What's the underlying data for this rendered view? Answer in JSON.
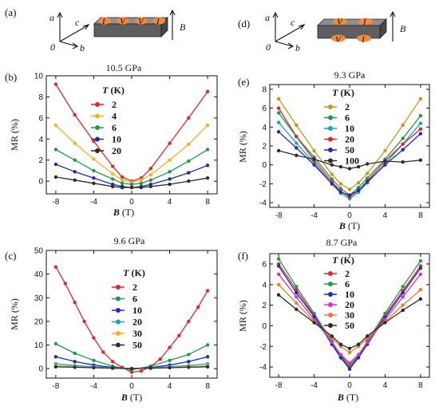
{
  "figure": {
    "schematics": [
      {
        "panel_label": "(a)",
        "axis_labels": {
          "a": "a",
          "b": "b",
          "c": "c",
          "origin": "0"
        },
        "field_label": "B",
        "contact_labels": [
          "I",
          "V",
          "V",
          "I"
        ],
        "colors": {
          "crystal": "#5e5e5e",
          "contact": "#f08a3c"
        }
      },
      {
        "panel_label": "(d)",
        "axis_labels": {
          "a": "a",
          "b": "b",
          "c": "c",
          "origin": "0"
        },
        "field_label": "B",
        "contact_labels_top": [
          "V",
          "I"
        ],
        "contact_labels_bottom": [
          "V",
          "I"
        ],
        "colors": {
          "crystal": "#5e5e5e",
          "contact": "#f08a3c"
        }
      }
    ]
  },
  "chart_data": [
    {
      "panel_label": "(b)",
      "type": "line",
      "title": "10.5 GPa",
      "xlabel_var": "B",
      "xlabel_unit": "(T)",
      "ylabel": "MR (%)",
      "legend_title_var": "T",
      "legend_title_unit": "(K)",
      "legend_position": "top-center",
      "xlim": [
        -9,
        9
      ],
      "ylim": [
        -1.2,
        10
      ],
      "xticks": [
        -8,
        -4,
        0,
        4,
        8
      ],
      "yticks": [
        0,
        2,
        4,
        6,
        8,
        10
      ],
      "tick_labels_x": [
        "-8",
        "-4",
        "0",
        "4",
        "8"
      ],
      "tick_labels_y": [
        "0",
        "2",
        "4",
        "6",
        "8",
        "10"
      ],
      "series": [
        {
          "name": "2",
          "color": "#e0262b",
          "x": [
            -8,
            -6,
            -4,
            -2,
            -1,
            0,
            1,
            2,
            4,
            6,
            8
          ],
          "y": [
            9.2,
            6.3,
            3.8,
            1.4,
            0.4,
            0.0,
            0.3,
            1.2,
            3.6,
            6.0,
            8.5
          ]
        },
        {
          "name": "4",
          "color": "#f2b324",
          "x": [
            -8,
            -6,
            -4,
            -2,
            -1,
            0,
            1,
            2,
            4,
            6,
            8
          ],
          "y": [
            5.3,
            3.6,
            2.1,
            0.7,
            0.1,
            -0.1,
            0.1,
            0.6,
            2.0,
            3.5,
            5.3
          ]
        },
        {
          "name": "6",
          "color": "#1f9a4a",
          "x": [
            -8,
            -6,
            -4,
            -2,
            -1,
            0,
            1,
            2,
            4,
            6,
            8
          ],
          "y": [
            3.0,
            2.0,
            1.0,
            0.2,
            -0.2,
            -0.3,
            -0.2,
            0.1,
            0.9,
            1.9,
            3.0
          ]
        },
        {
          "name": "10",
          "color": "#1c2bb8",
          "x": [
            -8,
            -6,
            -4,
            -2,
            -1,
            0,
            1,
            2,
            4,
            6,
            8
          ],
          "y": [
            1.6,
            0.9,
            0.3,
            -0.3,
            -0.5,
            -0.6,
            -0.5,
            -0.3,
            0.2,
            0.8,
            1.5
          ]
        },
        {
          "name": "20",
          "color": "#2c2c2c",
          "x": [
            -8,
            -6,
            -4,
            -2,
            -1,
            0,
            1,
            2,
            4,
            6,
            8
          ],
          "y": [
            0.4,
            0.1,
            -0.2,
            -0.5,
            -0.6,
            -0.6,
            -0.6,
            -0.5,
            -0.3,
            0.0,
            0.3
          ]
        }
      ]
    },
    {
      "panel_label": "(c)",
      "type": "line",
      "title": "9.6 GPa",
      "xlabel_var": "B",
      "xlabel_unit": "(T)",
      "ylabel": "MR (%)",
      "legend_title_var": "T",
      "legend_title_unit": "(K)",
      "legend_position": "top-center",
      "xlim": [
        -9,
        9
      ],
      "ylim": [
        -4,
        50
      ],
      "xticks": [
        -8,
        -4,
        0,
        4,
        8
      ],
      "yticks": [
        0,
        10,
        20,
        30,
        40,
        50
      ],
      "tick_labels_x": [
        "-8",
        "-4",
        "0",
        "4",
        "8"
      ],
      "tick_labels_y": [
        "0",
        "10",
        "20",
        "30",
        "40",
        "50"
      ],
      "series": [
        {
          "name": "2",
          "color": "#e0262b",
          "x": [
            -8,
            -7,
            -6,
            -5,
            -4,
            -3,
            -2,
            -1,
            0,
            1,
            2,
            3,
            4,
            5,
            6,
            7,
            8
          ],
          "y": [
            43,
            36,
            28,
            20,
            13,
            7,
            3,
            0.5,
            -1.5,
            -1,
            1,
            4,
            9,
            14,
            20,
            26,
            33
          ]
        },
        {
          "name": "6",
          "color": "#1f9a4a",
          "x": [
            -8,
            -6,
            -4,
            -2,
            0,
            2,
            4,
            6,
            8
          ],
          "y": [
            10.5,
            6.5,
            3.5,
            1,
            -0.5,
            1,
            3.5,
            6,
            10
          ]
        },
        {
          "name": "10",
          "color": "#1c2bb8",
          "x": [
            -8,
            -6,
            -4,
            -2,
            0,
            2,
            4,
            6,
            8
          ],
          "y": [
            5,
            3,
            1.5,
            0.5,
            0,
            0.5,
            1.5,
            3,
            5
          ]
        },
        {
          "name": "20",
          "color": "#18a3b8",
          "x": [
            -8,
            -6,
            -4,
            -2,
            0,
            2,
            4,
            6,
            8
          ],
          "y": [
            2,
            1.3,
            0.8,
            0.3,
            0,
            0.3,
            0.8,
            1.3,
            2
          ]
        },
        {
          "name": "30",
          "color": "#f2b324",
          "x": [
            -8,
            -6,
            -4,
            -2,
            0,
            2,
            4,
            6,
            8
          ],
          "y": [
            1.2,
            0.8,
            0.5,
            0.2,
            0,
            0.2,
            0.5,
            0.8,
            1.2
          ]
        },
        {
          "name": "50",
          "color": "#2c2c2c",
          "x": [
            -8,
            -6,
            -4,
            -2,
            0,
            2,
            4,
            6,
            8
          ],
          "y": [
            0.8,
            0.6,
            0.4,
            0.2,
            0,
            0.2,
            0.4,
            0.6,
            0.8
          ]
        }
      ]
    },
    {
      "panel_label": "(e)",
      "type": "line",
      "title": "9.3 GPa",
      "xlabel_var": "B",
      "xlabel_unit": "(T)",
      "ylabel": "MR (%)",
      "legend_title_var": "T",
      "legend_title_unit": "(K)",
      "legend_position": "top-center",
      "xlim": [
        -9,
        9
      ],
      "ylim": [
        -4.5,
        8.5
      ],
      "xticks": [
        -8,
        -4,
        0,
        4,
        8
      ],
      "yticks": [
        -4,
        -2,
        0,
        2,
        4,
        6,
        8
      ],
      "tick_labels_x": [
        "-8",
        "-4",
        "0",
        "4",
        "8"
      ],
      "tick_labels_y": [
        "-4",
        "-2",
        "0",
        "2",
        "4",
        "6",
        "8"
      ],
      "series": [
        {
          "name": "2",
          "color": "#c8961e",
          "x": [
            -8,
            -6,
            -4,
            -2,
            -1,
            0,
            1,
            2,
            4,
            6,
            8
          ],
          "y": [
            7.0,
            4.2,
            1.5,
            -1.0,
            -2.0,
            -2.6,
            -1.9,
            -0.9,
            1.5,
            4.2,
            7.0
          ]
        },
        {
          "name": "6",
          "color": "#1f9a4a",
          "x": [
            -8,
            -6,
            -4,
            -2,
            -1,
            0,
            1,
            2,
            4,
            6,
            8
          ],
          "y": [
            5.5,
            3.0,
            0.8,
            -1.5,
            -2.5,
            -3.2,
            -2.4,
            -1.4,
            0.6,
            2.8,
            5.2
          ]
        },
        {
          "name": "10",
          "color": "#18a3b8",
          "x": [
            -8,
            -6,
            -4,
            -2,
            -1,
            0,
            1,
            2,
            4,
            6,
            8
          ],
          "y": [
            4.5,
            2.3,
            0.2,
            -2.0,
            -3.0,
            -3.6,
            -2.9,
            -1.9,
            0.1,
            2.2,
            4.4
          ]
        },
        {
          "name": "20",
          "color": "#e0262b",
          "x": [
            -8,
            -6,
            -4,
            -2,
            -1,
            0,
            1,
            2,
            4,
            6,
            8
          ],
          "y": [
            6.0,
            3.0,
            0.5,
            -1.8,
            -2.8,
            -3.4,
            -2.7,
            -1.7,
            0.4,
            2.2,
            3.8
          ]
        },
        {
          "name": "50",
          "color": "#1c2bb8",
          "x": [
            -8,
            -6,
            -4,
            -2,
            -1,
            0,
            1,
            2,
            4,
            6,
            8
          ],
          "y": [
            3.5,
            1.8,
            0.0,
            -2.0,
            -2.9,
            -3.2,
            -2.7,
            -1.8,
            0.0,
            1.6,
            3.3
          ]
        },
        {
          "name": "100",
          "color": "#2c2c2c",
          "x": [
            -8,
            -6,
            -4,
            -2,
            -1,
            0,
            1,
            2,
            4,
            6,
            8
          ],
          "y": [
            1.5,
            1.0,
            0.6,
            0.0,
            -0.2,
            -0.4,
            -0.2,
            0.1,
            0.4,
            0.3,
            0.5
          ]
        }
      ]
    },
    {
      "panel_label": "(f)",
      "type": "line",
      "title": "8.7 GPa",
      "xlabel_var": "B",
      "xlabel_unit": "(T)",
      "ylabel": "MR (%)",
      "legend_title_var": "T",
      "legend_title_unit": "(K)",
      "legend_position": "top-center",
      "xlim": [
        -9,
        9
      ],
      "ylim": [
        -5,
        7
      ],
      "xticks": [
        -8,
        -4,
        0,
        4,
        8
      ],
      "yticks": [
        -4,
        -2,
        0,
        2,
        4,
        6
      ],
      "tick_labels_x": [
        "-8",
        "-4",
        "0",
        "4",
        "8"
      ],
      "tick_labels_y": [
        "-4",
        "-2",
        "0",
        "2",
        "4",
        "6"
      ],
      "series": [
        {
          "name": "2",
          "color": "#e0262b",
          "x": [
            -8,
            -6,
            -4,
            -2,
            -1,
            0,
            1,
            2,
            4,
            6,
            8
          ],
          "y": [
            6.0,
            3.5,
            1.0,
            -1.7,
            -3.0,
            -4.0,
            -3.0,
            -1.7,
            1.0,
            3.4,
            5.8
          ]
        },
        {
          "name": "6",
          "color": "#1f9a4a",
          "x": [
            -8,
            -6,
            -4,
            -2,
            -1,
            0,
            1,
            2,
            4,
            6,
            8
          ],
          "y": [
            6.5,
            3.8,
            1.2,
            -1.5,
            -2.9,
            -3.8,
            -2.9,
            -1.5,
            1.2,
            3.8,
            6.3
          ]
        },
        {
          "name": "10",
          "color": "#1c2bb8",
          "x": [
            -8,
            -6,
            -4,
            -2,
            -1,
            0,
            1,
            2,
            4,
            6,
            8
          ],
          "y": [
            5.8,
            3.2,
            0.9,
            -1.8,
            -3.1,
            -4.2,
            -3.1,
            -1.8,
            0.8,
            3.2,
            5.6
          ]
        },
        {
          "name": "20",
          "color": "#d62fd6",
          "x": [
            -8,
            -6,
            -4,
            -2,
            -1,
            0,
            1,
            2,
            4,
            6,
            8
          ],
          "y": [
            5.0,
            2.8,
            0.6,
            -1.6,
            -2.8,
            -3.6,
            -2.8,
            -1.6,
            0.6,
            2.8,
            5.0
          ]
        },
        {
          "name": "30",
          "color": "#f07a2c",
          "x": [
            -8,
            -6,
            -4,
            -2,
            -1,
            0,
            1,
            2,
            4,
            6,
            8
          ],
          "y": [
            4.0,
            2.2,
            0.4,
            -1.2,
            -2.0,
            -2.6,
            -2.0,
            -1.2,
            0.4,
            2.0,
            3.5
          ]
        },
        {
          "name": "50",
          "color": "#2c2c2c",
          "x": [
            -8,
            -6,
            -4,
            -2,
            -1,
            0,
            1,
            2,
            4,
            6,
            8
          ],
          "y": [
            3.0,
            1.6,
            0.3,
            -1.0,
            -1.8,
            -2.2,
            -1.8,
            -1.0,
            0.3,
            1.5,
            2.6
          ]
        }
      ]
    }
  ]
}
